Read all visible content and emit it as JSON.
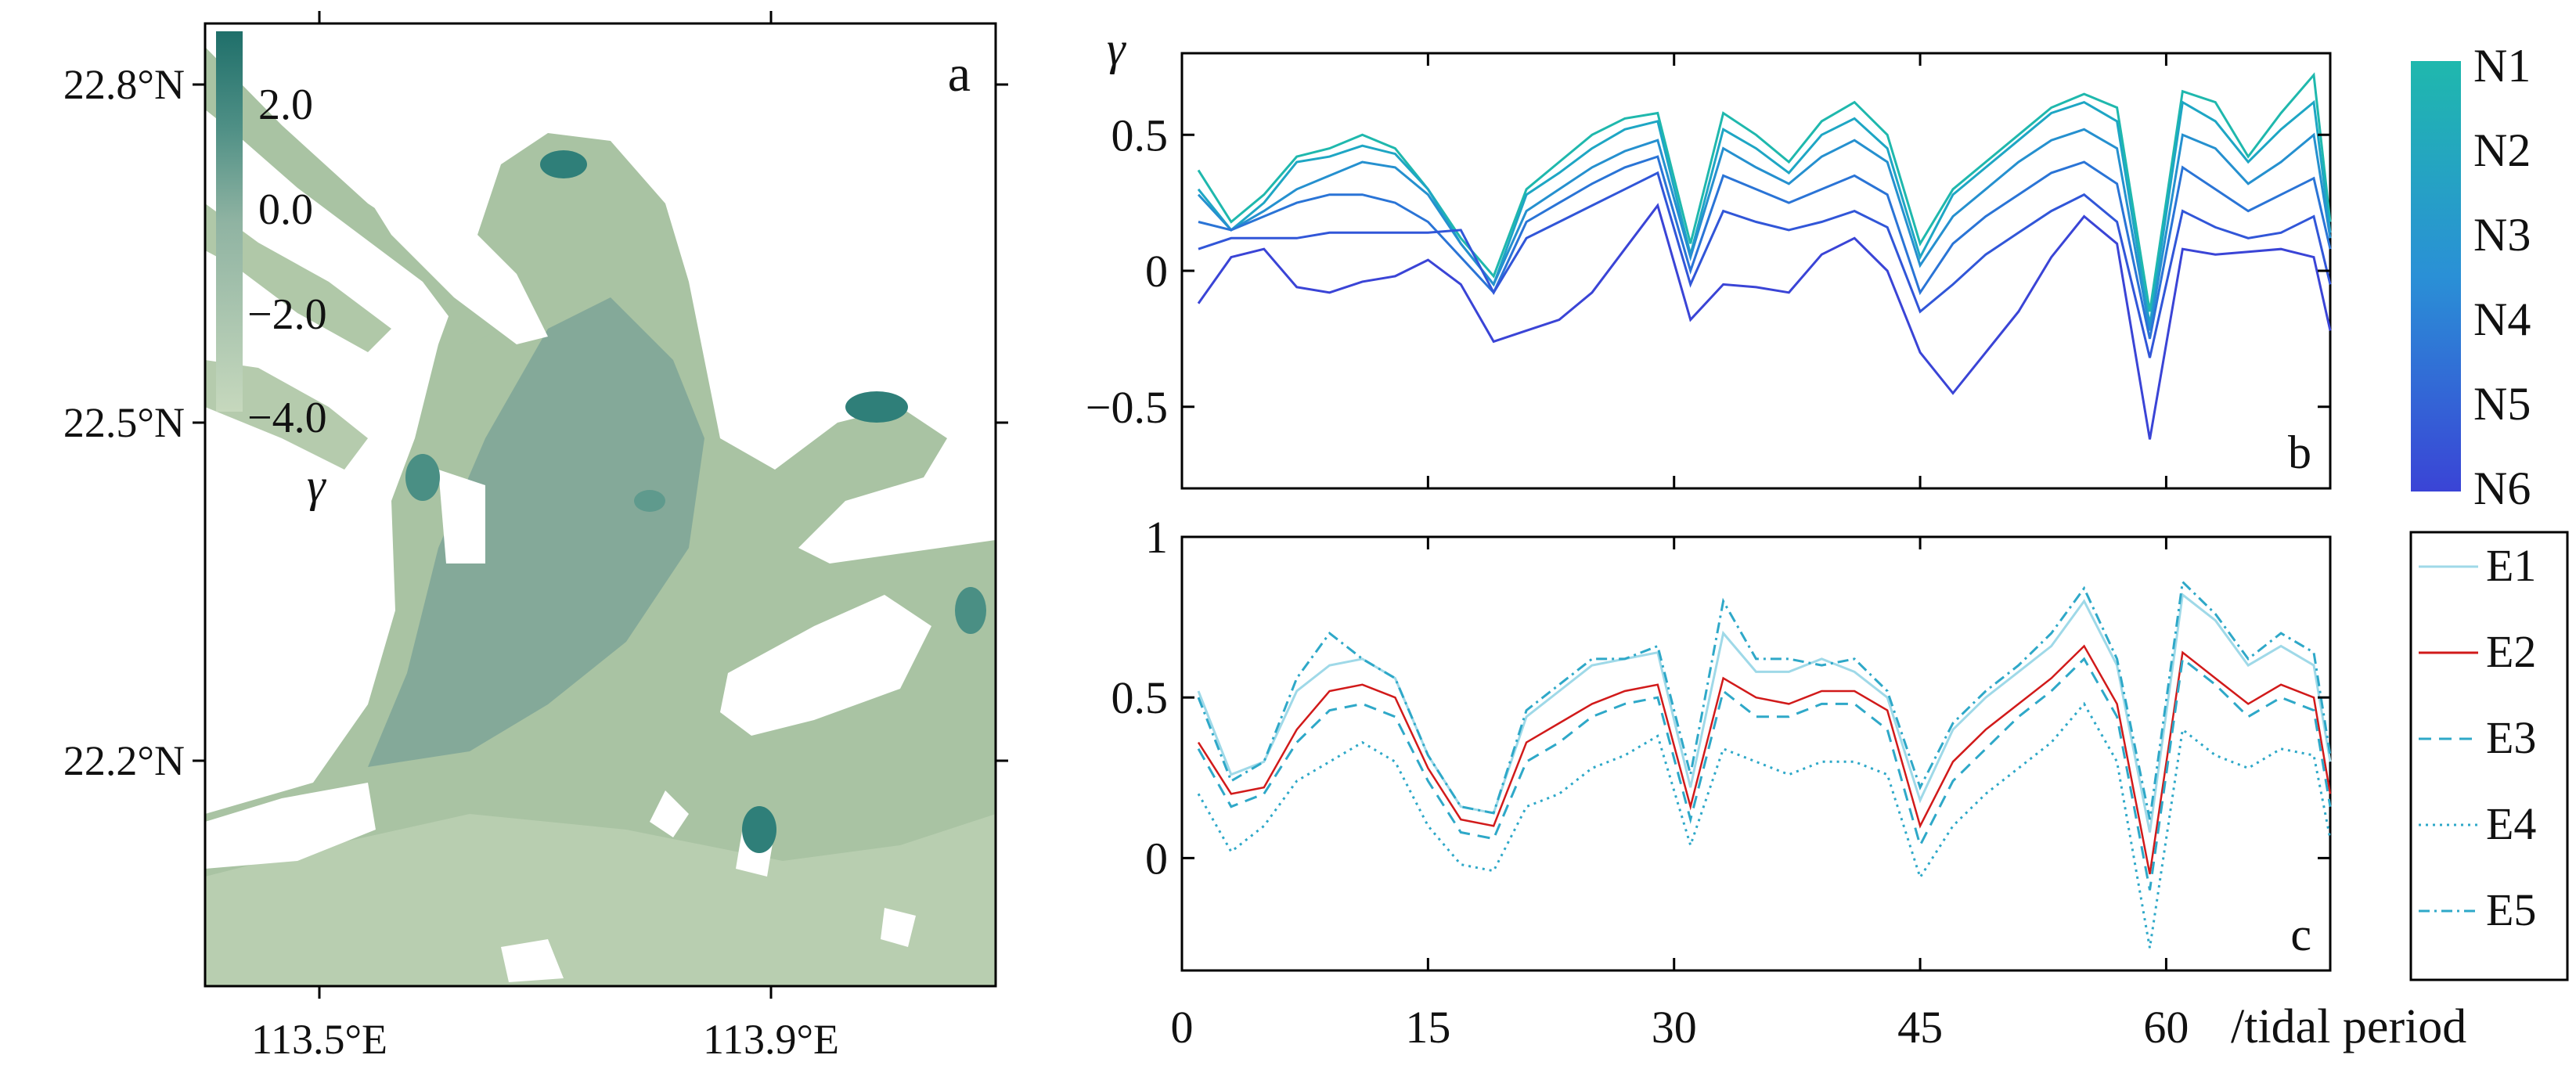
{
  "figure": {
    "panel_labels": {
      "a": "a",
      "b": "b",
      "c": "c"
    },
    "colors": {
      "map_base": "#b9ceb0",
      "map_mid": "#7fa99a",
      "map_dark": "#2f7f79",
      "n_top": "#1fb8ad",
      "n_bottom": "#3a44d6",
      "e_line": "#2ea8c8",
      "e_red": "#d11a1a"
    }
  },
  "map": {
    "lat_labels": [
      "22.8°N",
      "22.5°N",
      "22.2°N"
    ],
    "lon_labels": [
      "113.5°E",
      "113.9°E"
    ],
    "colorbar": {
      "ticks": [
        "2.0",
        "0.0",
        "−2.0",
        "−4.0"
      ],
      "label": "γ"
    }
  },
  "x_axis": {
    "ticks": [
      "0",
      "15",
      "30",
      "45",
      "60"
    ],
    "label": "/tidal period"
  },
  "chart_data": [
    {
      "panel": "b",
      "type": "line",
      "ylabel": "γ",
      "y_ticks": [
        "0.5",
        "0",
        "−0.5"
      ],
      "xlim": [
        0,
        70
      ],
      "ylim": [
        -0.8,
        0.8
      ],
      "colorbar": {
        "labels": [
          "N1",
          "N2",
          "N3",
          "N4",
          "N5",
          "N6"
        ]
      },
      "series": [
        {
          "name": "N1",
          "x": [
            1,
            3,
            5,
            7,
            9,
            11,
            13,
            15,
            17,
            19,
            21,
            23,
            25,
            27,
            29,
            31,
            33,
            35,
            37,
            39,
            41,
            43,
            45,
            47,
            49,
            51,
            53,
            55,
            57,
            59,
            61,
            63,
            65,
            67,
            69,
            70
          ],
          "values": [
            0.37,
            0.18,
            0.28,
            0.42,
            0.45,
            0.5,
            0.45,
            0.3,
            0.12,
            -0.02,
            0.3,
            0.4,
            0.5,
            0.56,
            0.58,
            0.1,
            0.58,
            0.5,
            0.4,
            0.55,
            0.62,
            0.5,
            0.1,
            0.3,
            0.4,
            0.5,
            0.6,
            0.65,
            0.6,
            -0.15,
            0.66,
            0.62,
            0.42,
            0.58,
            0.72,
            0.18
          ]
        },
        {
          "name": "N2",
          "x": [
            1,
            3,
            5,
            7,
            9,
            11,
            13,
            15,
            17,
            19,
            21,
            23,
            25,
            27,
            29,
            31,
            33,
            35,
            37,
            39,
            41,
            43,
            45,
            47,
            49,
            51,
            53,
            55,
            57,
            59,
            61,
            63,
            65,
            67,
            69,
            70
          ],
          "values": [
            0.3,
            0.15,
            0.25,
            0.4,
            0.42,
            0.46,
            0.43,
            0.3,
            0.1,
            -0.05,
            0.28,
            0.36,
            0.45,
            0.52,
            0.55,
            0.06,
            0.52,
            0.45,
            0.36,
            0.5,
            0.56,
            0.45,
            0.05,
            0.28,
            0.38,
            0.48,
            0.58,
            0.62,
            0.55,
            -0.2,
            0.62,
            0.55,
            0.4,
            0.52,
            0.62,
            0.14
          ]
        },
        {
          "name": "N3",
          "x": [
            1,
            3,
            5,
            7,
            9,
            11,
            13,
            15,
            17,
            19,
            21,
            23,
            25,
            27,
            29,
            31,
            33,
            35,
            37,
            39,
            41,
            43,
            45,
            47,
            49,
            51,
            53,
            55,
            57,
            59,
            61,
            63,
            65,
            67,
            69,
            70
          ],
          "values": [
            0.28,
            0.15,
            0.22,
            0.3,
            0.35,
            0.4,
            0.38,
            0.28,
            0.1,
            -0.05,
            0.22,
            0.3,
            0.38,
            0.44,
            0.48,
            0.05,
            0.45,
            0.38,
            0.32,
            0.42,
            0.48,
            0.4,
            0.02,
            0.2,
            0.3,
            0.4,
            0.48,
            0.52,
            0.45,
            -0.22,
            0.5,
            0.45,
            0.32,
            0.4,
            0.5,
            0.12
          ]
        },
        {
          "name": "N4",
          "x": [
            1,
            3,
            5,
            7,
            9,
            11,
            13,
            15,
            17,
            19,
            21,
            23,
            25,
            27,
            29,
            31,
            33,
            35,
            37,
            39,
            41,
            43,
            45,
            47,
            49,
            51,
            53,
            55,
            57,
            59,
            61,
            63,
            65,
            67,
            69,
            70
          ],
          "values": [
            0.18,
            0.15,
            0.2,
            0.25,
            0.28,
            0.28,
            0.25,
            0.18,
            0.05,
            -0.08,
            0.18,
            0.25,
            0.32,
            0.38,
            0.42,
            0.0,
            0.35,
            0.3,
            0.25,
            0.3,
            0.35,
            0.28,
            -0.08,
            0.1,
            0.2,
            0.28,
            0.36,
            0.4,
            0.32,
            -0.25,
            0.38,
            0.3,
            0.22,
            0.28,
            0.34,
            0.08
          ]
        },
        {
          "name": "N5",
          "x": [
            1,
            3,
            5,
            7,
            9,
            11,
            13,
            15,
            17,
            19,
            21,
            23,
            25,
            27,
            29,
            31,
            33,
            35,
            37,
            39,
            41,
            43,
            45,
            47,
            49,
            51,
            53,
            55,
            57,
            59,
            61,
            63,
            65,
            67,
            69,
            70
          ],
          "values": [
            0.08,
            0.12,
            0.12,
            0.12,
            0.14,
            0.14,
            0.14,
            0.14,
            0.15,
            -0.08,
            0.12,
            0.18,
            0.24,
            0.3,
            0.36,
            -0.05,
            0.22,
            0.18,
            0.15,
            0.18,
            0.22,
            0.16,
            -0.15,
            -0.05,
            0.06,
            0.14,
            0.22,
            0.28,
            0.18,
            -0.32,
            0.22,
            0.16,
            0.12,
            0.14,
            0.2,
            -0.05
          ]
        },
        {
          "name": "N6",
          "x": [
            1,
            3,
            5,
            7,
            9,
            11,
            13,
            15,
            17,
            19,
            21,
            23,
            25,
            27,
            29,
            31,
            33,
            35,
            37,
            39,
            41,
            43,
            45,
            47,
            49,
            51,
            53,
            55,
            57,
            59,
            61,
            63,
            65,
            67,
            69,
            70
          ],
          "values": [
            -0.12,
            0.05,
            0.08,
            -0.06,
            -0.08,
            -0.04,
            -0.02,
            0.04,
            -0.05,
            -0.26,
            -0.22,
            -0.18,
            -0.08,
            0.08,
            0.24,
            -0.18,
            -0.05,
            -0.06,
            -0.08,
            0.06,
            0.12,
            0.0,
            -0.3,
            -0.45,
            -0.3,
            -0.15,
            0.05,
            0.2,
            0.1,
            -0.62,
            0.08,
            0.06,
            0.07,
            0.08,
            0.05,
            -0.22
          ]
        }
      ]
    },
    {
      "panel": "c",
      "type": "line",
      "y_ticks": [
        "1",
        "0.5",
        "0"
      ],
      "xlim": [
        0,
        70
      ],
      "ylim": [
        -0.35,
        1.0
      ],
      "legend": [
        "E1",
        "E2",
        "E3",
        "E4",
        "E5"
      ],
      "series": [
        {
          "name": "E1",
          "x": [
            1,
            3,
            5,
            7,
            9,
            11,
            13,
            15,
            17,
            19,
            21,
            23,
            25,
            27,
            29,
            31,
            33,
            35,
            37,
            39,
            41,
            43,
            45,
            47,
            49,
            51,
            53,
            55,
            57,
            59,
            61,
            63,
            65,
            67,
            69,
            70
          ],
          "values": [
            0.52,
            0.26,
            0.3,
            0.52,
            0.6,
            0.62,
            0.56,
            0.32,
            0.16,
            0.14,
            0.44,
            0.52,
            0.6,
            0.62,
            0.64,
            0.22,
            0.7,
            0.58,
            0.58,
            0.62,
            0.58,
            0.5,
            0.18,
            0.4,
            0.5,
            0.58,
            0.66,
            0.8,
            0.6,
            0.08,
            0.82,
            0.74,
            0.6,
            0.66,
            0.6,
            0.3
          ]
        },
        {
          "name": "E2",
          "x": [
            1,
            3,
            5,
            7,
            9,
            11,
            13,
            15,
            17,
            19,
            21,
            23,
            25,
            27,
            29,
            31,
            33,
            35,
            37,
            39,
            41,
            43,
            45,
            47,
            49,
            51,
            53,
            55,
            57,
            59,
            61,
            63,
            65,
            67,
            69,
            70
          ],
          "values": [
            0.36,
            0.2,
            0.22,
            0.4,
            0.52,
            0.54,
            0.5,
            0.28,
            0.12,
            0.1,
            0.36,
            0.42,
            0.48,
            0.52,
            0.54,
            0.16,
            0.56,
            0.5,
            0.48,
            0.52,
            0.52,
            0.46,
            0.1,
            0.3,
            0.4,
            0.48,
            0.56,
            0.66,
            0.48,
            -0.05,
            0.64,
            0.56,
            0.48,
            0.54,
            0.5,
            0.2
          ]
        },
        {
          "name": "E3",
          "x": [
            1,
            3,
            5,
            7,
            9,
            11,
            13,
            15,
            17,
            19,
            21,
            23,
            25,
            27,
            29,
            31,
            33,
            35,
            37,
            39,
            41,
            43,
            45,
            47,
            49,
            51,
            53,
            55,
            57,
            59,
            61,
            63,
            65,
            67,
            69,
            70
          ],
          "values": [
            0.34,
            0.16,
            0.2,
            0.36,
            0.46,
            0.48,
            0.44,
            0.24,
            0.08,
            0.06,
            0.3,
            0.36,
            0.44,
            0.48,
            0.5,
            0.12,
            0.52,
            0.44,
            0.44,
            0.48,
            0.48,
            0.4,
            0.04,
            0.24,
            0.34,
            0.44,
            0.52,
            0.62,
            0.44,
            -0.1,
            0.62,
            0.54,
            0.44,
            0.5,
            0.46,
            0.16
          ]
        },
        {
          "name": "E4",
          "x": [
            1,
            3,
            5,
            7,
            9,
            11,
            13,
            15,
            17,
            19,
            21,
            23,
            25,
            27,
            29,
            31,
            33,
            35,
            37,
            39,
            41,
            43,
            45,
            47,
            49,
            51,
            53,
            55,
            57,
            59,
            61,
            63,
            65,
            67,
            69,
            70
          ],
          "values": [
            0.2,
            0.02,
            0.1,
            0.24,
            0.3,
            0.36,
            0.3,
            0.1,
            -0.02,
            -0.04,
            0.16,
            0.2,
            0.28,
            0.32,
            0.38,
            0.04,
            0.34,
            0.3,
            0.26,
            0.3,
            0.3,
            0.26,
            -0.06,
            0.1,
            0.2,
            0.28,
            0.36,
            0.48,
            0.3,
            -0.28,
            0.4,
            0.32,
            0.28,
            0.34,
            0.32,
            0.06
          ]
        },
        {
          "name": "E5",
          "x": [
            1,
            3,
            5,
            7,
            9,
            11,
            13,
            15,
            17,
            19,
            21,
            23,
            25,
            27,
            29,
            31,
            33,
            35,
            37,
            39,
            41,
            43,
            45,
            47,
            49,
            51,
            53,
            55,
            57,
            59,
            61,
            63,
            65,
            67,
            69,
            70
          ],
          "values": [
            0.5,
            0.24,
            0.3,
            0.56,
            0.7,
            0.62,
            0.56,
            0.32,
            0.16,
            0.14,
            0.46,
            0.54,
            0.62,
            0.62,
            0.66,
            0.26,
            0.8,
            0.62,
            0.62,
            0.6,
            0.62,
            0.52,
            0.22,
            0.42,
            0.52,
            0.6,
            0.7,
            0.84,
            0.62,
            0.12,
            0.86,
            0.76,
            0.62,
            0.7,
            0.64,
            0.32
          ]
        }
      ]
    }
  ]
}
